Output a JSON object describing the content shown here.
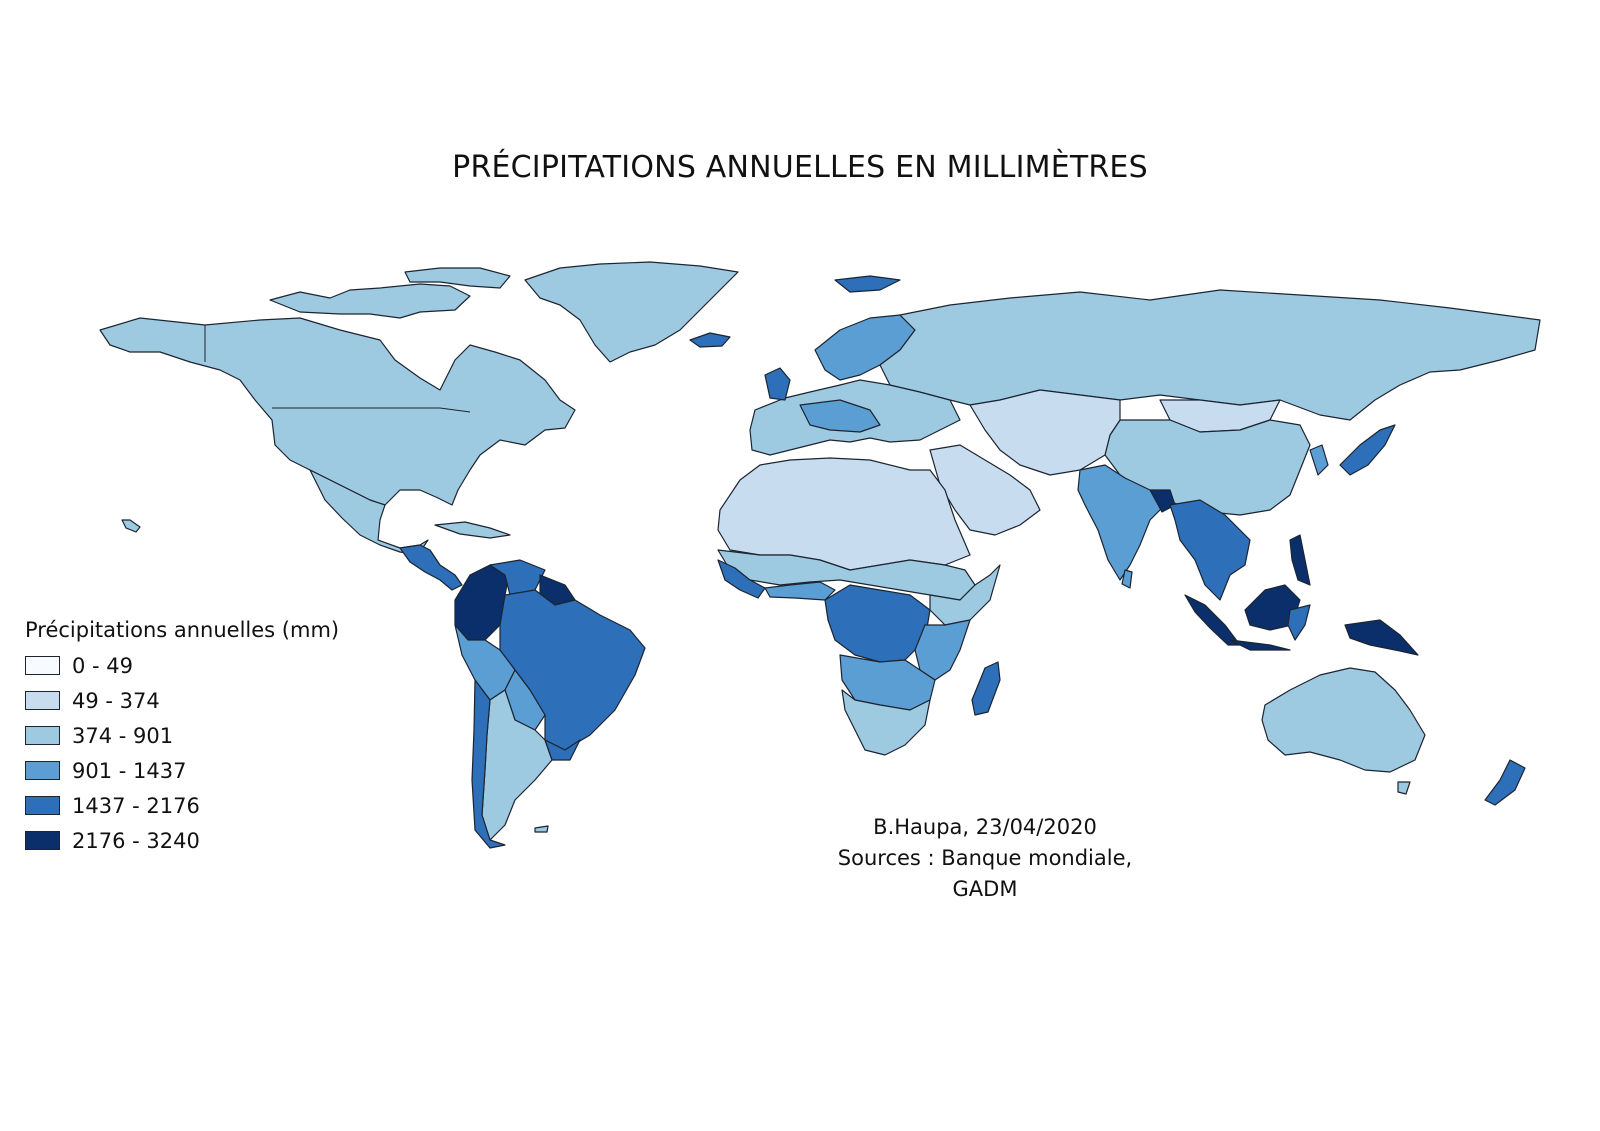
{
  "title": "PRÉCIPITATIONS ANNUELLES EN MILLIMÈTRES",
  "legend": {
    "title": "Précipitations annuelles (mm)",
    "classes": [
      {
        "label": "0 - 49",
        "color": "#f7fbff"
      },
      {
        "label": "49 - 374",
        "color": "#c8dcef"
      },
      {
        "label": "374 - 901",
        "color": "#9ecae1"
      },
      {
        "label": "901 - 1437",
        "color": "#5b9ed3"
      },
      {
        "label": "1437 - 2176",
        "color": "#2d6fb8"
      },
      {
        "label": "2176 - 3240",
        "color": "#0b2f6b"
      }
    ]
  },
  "credits": {
    "author": "B.Haupa, 23/04/2020",
    "sources": "Sources : Banque mondiale, GADM"
  }
}
